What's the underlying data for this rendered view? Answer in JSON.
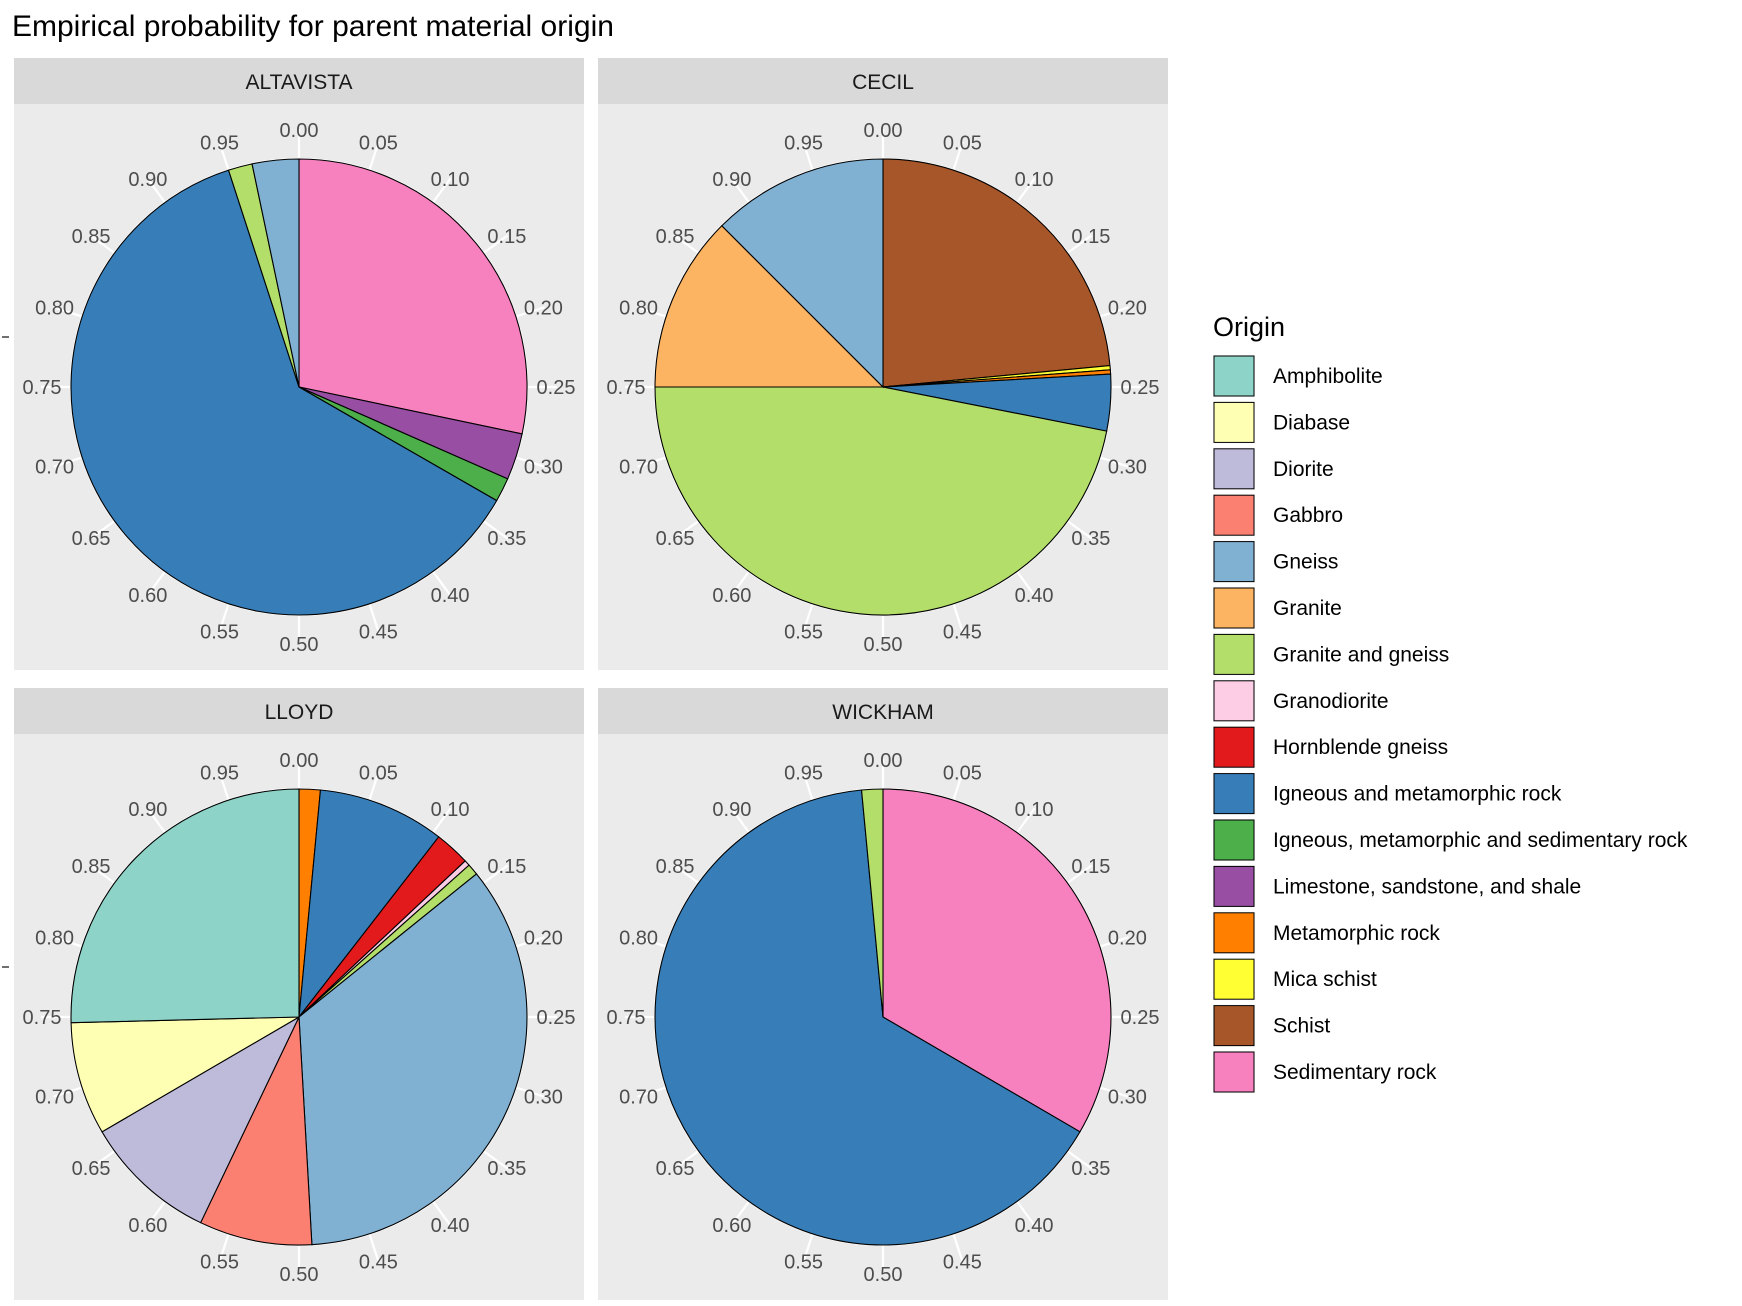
{
  "chart_data": {
    "type": "pie",
    "title": "Empirical probability for parent material origin",
    "legend_title": "Origin",
    "legend_position": "right",
    "radial_ticks": [
      "0.00",
      "0.05",
      "0.10",
      "0.15",
      "0.20",
      "0.25",
      "0.30",
      "0.35",
      "0.40",
      "0.45",
      "0.50",
      "0.55",
      "0.60",
      "0.65",
      "0.70",
      "0.75",
      "0.80",
      "0.85",
      "0.90",
      "0.95"
    ],
    "categories": [
      {
        "name": "Amphibolite",
        "color": "#8DD3C7"
      },
      {
        "name": "Diabase",
        "color": "#FFFFB3"
      },
      {
        "name": "Diorite",
        "color": "#BEBADA"
      },
      {
        "name": "Gabbro",
        "color": "#FB8072"
      },
      {
        "name": "Gneiss",
        "color": "#80B1D3"
      },
      {
        "name": "Granite",
        "color": "#FDB462"
      },
      {
        "name": "Granite and gneiss",
        "color": "#B3DE69"
      },
      {
        "name": "Granodiorite",
        "color": "#FCCDE5"
      },
      {
        "name": "Hornblende gneiss",
        "color": "#E31A1C"
      },
      {
        "name": "Igneous and metamorphic rock",
        "color": "#377EB8"
      },
      {
        "name": "Igneous, metamorphic and sedimentary rock",
        "color": "#4DAF4A"
      },
      {
        "name": "Limestone, sandstone, and shale",
        "color": "#984EA3"
      },
      {
        "name": "Metamorphic rock",
        "color": "#FF7F00"
      },
      {
        "name": "Mica schist",
        "color": "#FFFF33"
      },
      {
        "name": "Schist",
        "color": "#A65628"
      },
      {
        "name": "Sedimentary rock",
        "color": "#F781BF"
      }
    ],
    "panels": [
      {
        "name": "ALTAVISTA",
        "slices": [
          {
            "origin": "Sedimentary rock",
            "value": 0.283
          },
          {
            "origin": "Limestone, sandstone, and shale",
            "value": 0.033
          },
          {
            "origin": "Igneous, metamorphic and sedimentary rock",
            "value": 0.017
          },
          {
            "origin": "Igneous and metamorphic rock",
            "value": 0.617
          },
          {
            "origin": "Granite and gneiss",
            "value": 0.017
          },
          {
            "origin": "Gneiss",
            "value": 0.033
          }
        ]
      },
      {
        "name": "CECIL",
        "slices": [
          {
            "origin": "Schist",
            "value": 0.235
          },
          {
            "origin": "Mica schist",
            "value": 0.003
          },
          {
            "origin": "Metamorphic rock",
            "value": 0.003
          },
          {
            "origin": "Igneous and metamorphic rock",
            "value": 0.04
          },
          {
            "origin": "Granite and gneiss",
            "value": 0.469
          },
          {
            "origin": "Granite",
            "value": 0.125
          },
          {
            "origin": "Gneiss",
            "value": 0.125
          }
        ]
      },
      {
        "name": "LLOYD",
        "slices": [
          {
            "origin": "Metamorphic rock",
            "value": 0.015
          },
          {
            "origin": "Igneous and metamorphic rock",
            "value": 0.09
          },
          {
            "origin": "Hornblende gneiss",
            "value": 0.025
          },
          {
            "origin": "Granodiorite",
            "value": 0.004
          },
          {
            "origin": "Granite and gneiss",
            "value": 0.008
          },
          {
            "origin": "Gneiss",
            "value": 0.349
          },
          {
            "origin": "Gabbro",
            "value": 0.08
          },
          {
            "origin": "Diorite",
            "value": 0.095
          },
          {
            "origin": "Diabase",
            "value": 0.08
          },
          {
            "origin": "Amphibolite",
            "value": 0.254
          }
        ]
      },
      {
        "name": "WICKHAM",
        "slices": [
          {
            "origin": "Sedimentary rock",
            "value": 0.334
          },
          {
            "origin": "Igneous and metamorphic rock",
            "value": 0.651
          },
          {
            "origin": "Granite and gneiss",
            "value": 0.015
          }
        ]
      }
    ]
  }
}
